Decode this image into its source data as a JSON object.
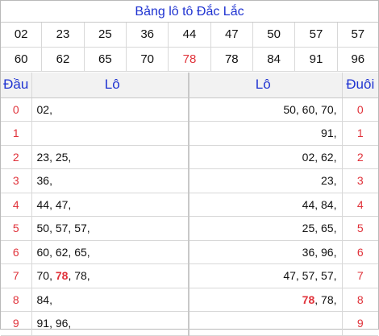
{
  "title": "Bảng lô tô Đắc Lắc",
  "numbers_row1": [
    "02",
    "23",
    "25",
    "36",
    "44",
    "47",
    "50",
    "57",
    "57"
  ],
  "numbers_row2": [
    "60",
    "62",
    "65",
    "70",
    "78",
    "78",
    "84",
    "91",
    "96"
  ],
  "highlight": "78",
  "colors": {
    "accent": "#1f33d1",
    "highlight": "#e0323a"
  },
  "headers": {
    "dau": "Đầu",
    "lo_left": "Lô",
    "lo_right": "Lô",
    "duoi": "Đuôi"
  },
  "rows": [
    {
      "dau": "0",
      "left": [
        "02,"
      ],
      "right": [
        "50, 60, 70,"
      ],
      "duoi": "0"
    },
    {
      "dau": "1",
      "left": [
        ""
      ],
      "right": [
        "91,"
      ],
      "duoi": "1"
    },
    {
      "dau": "2",
      "left": [
        "23, 25,"
      ],
      "right": [
        "02, 62,"
      ],
      "duoi": "2"
    },
    {
      "dau": "3",
      "left": [
        "36,"
      ],
      "right": [
        "23,"
      ],
      "duoi": "3"
    },
    {
      "dau": "4",
      "left": [
        "44, 47,"
      ],
      "right": [
        "44, 84,"
      ],
      "duoi": "4"
    },
    {
      "dau": "5",
      "left": [
        "50, 57, 57,"
      ],
      "right": [
        "25, 65,"
      ],
      "duoi": "5"
    },
    {
      "dau": "6",
      "left": [
        "60, 62, 65,"
      ],
      "right": [
        "36, 96,"
      ],
      "duoi": "6"
    },
    {
      "dau": "7",
      "left": [
        "70, ",
        "78",
        ", 78,"
      ],
      "right": [
        "47, 57, 57,"
      ],
      "duoi": "7"
    },
    {
      "dau": "8",
      "left": [
        "84,"
      ],
      "right": [
        "78",
        ", 78,"
      ],
      "duoi": "8"
    },
    {
      "dau": "9",
      "left": [
        "91, 96,"
      ],
      "right": [
        ""
      ],
      "duoi": "9"
    }
  ]
}
